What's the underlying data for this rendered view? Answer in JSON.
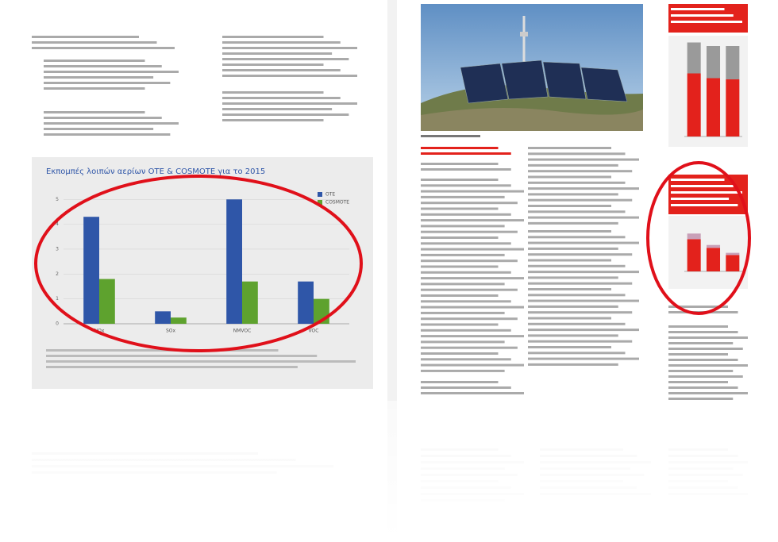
{
  "chart_data": [
    {
      "type": "bar",
      "title": "Εκπομπές λοιπών αερίων ΟΤΕ & COSMOTE για το 2015",
      "categories": [
        "NOx",
        "SOx",
        "NMVOC",
        "VOC"
      ],
      "series": [
        {
          "name": "OTE",
          "color": "#2f56a8",
          "values": [
            4.3,
            0.5,
            5.0,
            1.7
          ]
        },
        {
          "name": "COSMOTE",
          "color": "#5ea22e",
          "values": [
            1.8,
            0.25,
            1.7,
            1.0
          ]
        }
      ],
      "ylim": [
        0,
        5.2
      ],
      "yticks": [
        0,
        1,
        2,
        3,
        4,
        5
      ],
      "grid": true,
      "legend": "top-right"
    },
    {
      "type": "stacked_bar",
      "categories": [
        null,
        null,
        null
      ],
      "series": [
        {
          "color": "#e3221c",
          "values": [
            5.3,
            4.9,
            4.8
          ]
        },
        {
          "color": "#9a9a9a",
          "values": [
            2.6,
            2.7,
            2.8
          ]
        }
      ],
      "ylim": [
        0,
        8
      ]
    },
    {
      "type": "stacked_bar",
      "categories": [
        null,
        null,
        null
      ],
      "series": [
        {
          "color": "#e3221c",
          "values": [
            4.5,
            3.3,
            2.3
          ]
        },
        {
          "color": "#c9a0b8",
          "values": [
            0.8,
            0.4,
            0.3
          ]
        }
      ],
      "ylim": [
        0,
        6
      ]
    }
  ]
}
